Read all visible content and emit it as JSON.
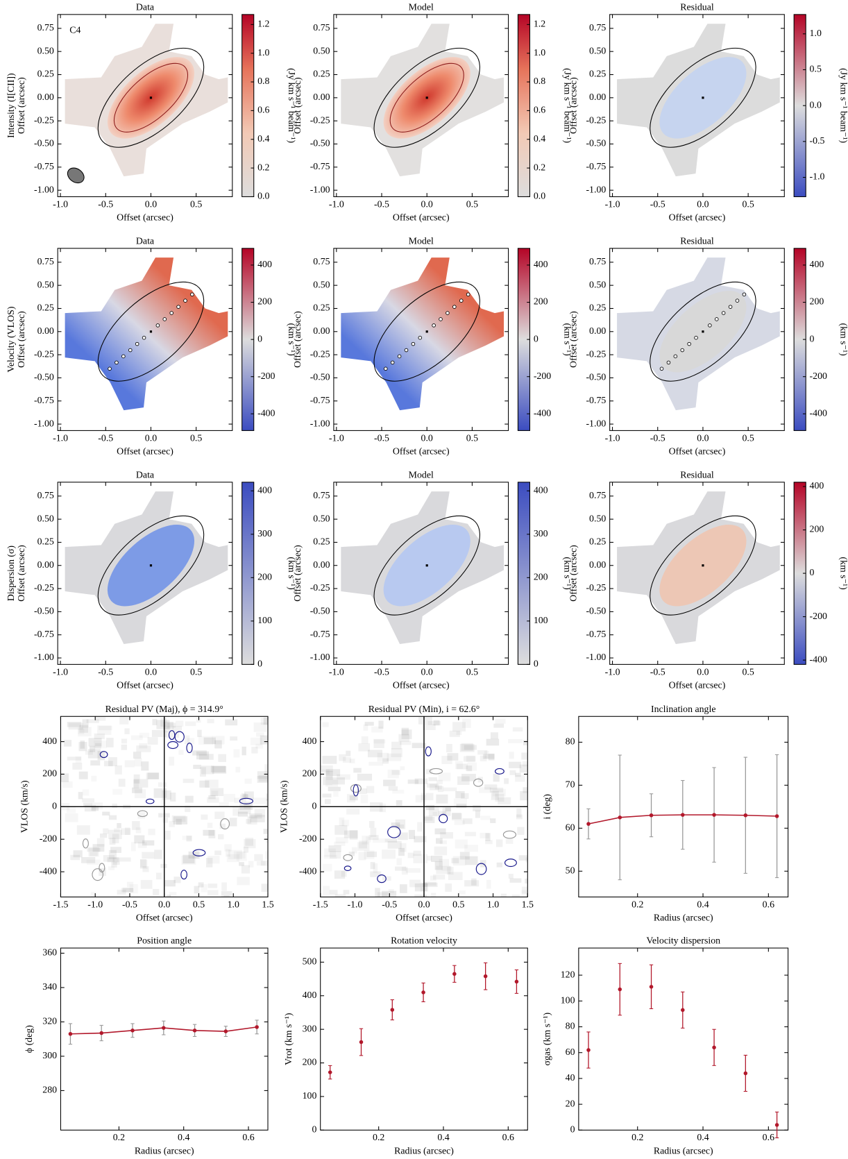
{
  "chart_data": [
    {
      "type": "map",
      "title": "Data",
      "annotation": "C4",
      "row_label": "Intensity (I[CII])",
      "ylabel": "Offset (arcsec)",
      "xlabel": "Offset (arcsec)",
      "xlim": [
        -1.03,
        0.9
      ],
      "ylim": [
        -1.07,
        0.9
      ],
      "xticks": [
        {
          "value": -1,
          "label": "-1.0"
        },
        -0.5,
        {
          "value": 0,
          "label": "0.0"
        },
        0.5
      ],
      "yticks": [
        {
          "value": -1,
          "label": "-1.00"
        },
        -0.75,
        {
          "value": -0.5,
          "label": "-0.50"
        },
        -0.25,
        {
          "value": 0,
          "label": "0.00"
        },
        0.25,
        {
          "value": 0.5,
          "label": "0.50"
        },
        0.75
      ],
      "colorbar": {
        "label": "(Jy km s⁻¹ beam⁻¹)",
        "cmap": "reds",
        "lim": [
          0,
          1.27
        ],
        "ticks": [
          {
            "value": 0,
            "label": "0.0"
          },
          0.2,
          0.4,
          0.6,
          0.8,
          {
            "value": 1,
            "label": "1.0"
          },
          1.2
        ]
      }
    },
    {
      "type": "map",
      "title": "Model",
      "ylabel": "Offset (arcsec)",
      "xlabel": "Offset (arcsec)",
      "xlim": [
        -1.03,
        0.9
      ],
      "ylim": [
        -1.07,
        0.9
      ],
      "xticks": [
        {
          "value": -1,
          "label": "-1.0"
        },
        -0.5,
        {
          "value": 0,
          "label": "0.0"
        },
        0.5
      ],
      "yticks": [
        {
          "value": -1,
          "label": "-1.00"
        },
        -0.75,
        {
          "value": -0.5,
          "label": "-0.50"
        },
        -0.25,
        {
          "value": 0,
          "label": "0.00"
        },
        0.25,
        {
          "value": 0.5,
          "label": "0.50"
        },
        0.75
      ],
      "colorbar": {
        "label": "(Jy km s⁻¹ beam⁻¹)",
        "cmap": "reds",
        "lim": [
          0,
          1.27
        ],
        "ticks": [
          {
            "value": 0,
            "label": "0.0"
          },
          0.2,
          0.4,
          0.6,
          0.8,
          {
            "value": 1,
            "label": "1.0"
          },
          1.2
        ]
      }
    },
    {
      "type": "map",
      "title": "Residual",
      "ylabel": "Offset (arcsec)",
      "xlabel": "Offset (arcsec)",
      "xlim": [
        -1.03,
        0.9
      ],
      "ylim": [
        -1.07,
        0.9
      ],
      "xticks": [
        {
          "value": -1,
          "label": "-1.0"
        },
        -0.5,
        {
          "value": 0,
          "label": "0.0"
        },
        0.5
      ],
      "yticks": [
        {
          "value": -1,
          "label": "-1.00"
        },
        -0.75,
        {
          "value": -0.5,
          "label": "-0.50"
        },
        -0.25,
        {
          "value": 0,
          "label": "0.00"
        },
        0.25,
        {
          "value": 0.5,
          "label": "0.50"
        },
        0.75
      ],
      "colorbar": {
        "label": "(Jy km s⁻¹ beam⁻¹)",
        "cmap": "coolwarm",
        "lim": [
          -1.27,
          1.27
        ],
        "ticks": [
          {
            "value": -1,
            "label": "-1.0"
          },
          -0.5,
          {
            "value": 0,
            "label": "0.0"
          },
          0.5,
          {
            "value": 1,
            "label": "1.0"
          }
        ]
      }
    },
    {
      "type": "map",
      "title": "Data",
      "row_label": "Velocity (VLOS)",
      "ylabel": "Offset (arcsec)",
      "xlabel": "Offset (arcsec)",
      "xlim": [
        -1.03,
        0.9
      ],
      "ylim": [
        -1.07,
        0.9
      ],
      "xticks": [
        {
          "value": -1,
          "label": "-1.0"
        },
        -0.5,
        {
          "value": 0,
          "label": "0.0"
        },
        0.5
      ],
      "yticks": [
        {
          "value": -1,
          "label": "-1.00"
        },
        -0.75,
        {
          "value": -0.5,
          "label": "-0.50"
        },
        -0.25,
        {
          "value": 0,
          "label": "0.00"
        },
        0.25,
        {
          "value": 0.5,
          "label": "0.50"
        },
        0.75
      ],
      "colorbar": {
        "label": "(km s⁻¹)",
        "cmap": "coolwarm",
        "lim": [
          -490,
          490
        ],
        "ticks": [
          -400,
          -200,
          0,
          200,
          400
        ]
      }
    },
    {
      "type": "map",
      "title": "Model",
      "ylabel": "Offset (arcsec)",
      "xlabel": "Offset (arcsec)",
      "xlim": [
        -1.03,
        0.9
      ],
      "ylim": [
        -1.07,
        0.9
      ],
      "xticks": [
        {
          "value": -1,
          "label": "-1.0"
        },
        -0.5,
        {
          "value": 0,
          "label": "0.0"
        },
        0.5
      ],
      "yticks": [
        {
          "value": -1,
          "label": "-1.00"
        },
        -0.75,
        {
          "value": -0.5,
          "label": "-0.50"
        },
        -0.25,
        {
          "value": 0,
          "label": "0.00"
        },
        0.25,
        {
          "value": 0.5,
          "label": "0.50"
        },
        0.75
      ],
      "colorbar": {
        "label": "(km s⁻¹)",
        "cmap": "coolwarm",
        "lim": [
          -490,
          490
        ],
        "ticks": [
          -400,
          -200,
          0,
          200,
          400
        ]
      }
    },
    {
      "type": "map",
      "title": "Residual",
      "ylabel": "Offset (arcsec)",
      "xlabel": "Offset (arcsec)",
      "xlim": [
        -1.03,
        0.9
      ],
      "ylim": [
        -1.07,
        0.9
      ],
      "xticks": [
        {
          "value": -1,
          "label": "-1.0"
        },
        -0.5,
        {
          "value": 0,
          "label": "0.0"
        },
        0.5
      ],
      "yticks": [
        {
          "value": -1,
          "label": "-1.00"
        },
        -0.75,
        {
          "value": -0.5,
          "label": "-0.50"
        },
        -0.25,
        {
          "value": 0,
          "label": "0.00"
        },
        0.25,
        {
          "value": 0.5,
          "label": "0.50"
        },
        0.75
      ],
      "colorbar": {
        "label": "(km s⁻¹)",
        "cmap": "coolwarm",
        "lim": [
          -490,
          490
        ],
        "ticks": [
          -400,
          -200,
          0,
          200,
          400
        ]
      }
    },
    {
      "type": "map",
      "title": "Data",
      "row_label": "Dispersion (σ)",
      "ylabel": "Offset (arcsec)",
      "xlabel": "Offset (arcsec)",
      "xlim": [
        -1.03,
        0.9
      ],
      "ylim": [
        -1.07,
        0.9
      ],
      "xticks": [
        {
          "value": -1,
          "label": "-1.0"
        },
        -0.5,
        {
          "value": 0,
          "label": "0.0"
        },
        0.5
      ],
      "yticks": [
        {
          "value": -1,
          "label": "-1.00"
        },
        -0.75,
        {
          "value": -0.5,
          "label": "-0.50"
        },
        -0.25,
        {
          "value": 0,
          "label": "0.00"
        },
        0.25,
        {
          "value": 0.5,
          "label": "0.50"
        },
        0.75
      ],
      "colorbar": {
        "label": "(km s⁻¹)",
        "cmap": "blues",
        "lim": [
          0,
          420
        ],
        "ticks": [
          0,
          100,
          200,
          300,
          400
        ]
      }
    },
    {
      "type": "map",
      "title": "Model",
      "ylabel": "Offset (arcsec)",
      "xlabel": "Offset (arcsec)",
      "xlim": [
        -1.03,
        0.9
      ],
      "ylim": [
        -1.07,
        0.9
      ],
      "xticks": [
        {
          "value": -1,
          "label": "-1.0"
        },
        -0.5,
        {
          "value": 0,
          "label": "0.0"
        },
        0.5
      ],
      "yticks": [
        {
          "value": -1,
          "label": "-1.00"
        },
        -0.75,
        {
          "value": -0.5,
          "label": "-0.50"
        },
        -0.25,
        {
          "value": 0,
          "label": "0.00"
        },
        0.25,
        {
          "value": 0.5,
          "label": "0.50"
        },
        0.75
      ],
      "colorbar": {
        "label": "(km s⁻¹)",
        "cmap": "blues",
        "lim": [
          0,
          420
        ],
        "ticks": [
          0,
          100,
          200,
          300,
          400
        ]
      }
    },
    {
      "type": "map",
      "title": "Residual",
      "ylabel": "Offset (arcsec)",
      "xlabel": "Offset (arcsec)",
      "xlim": [
        -1.03,
        0.9
      ],
      "ylim": [
        -1.07,
        0.9
      ],
      "xticks": [
        {
          "value": -1,
          "label": "-1.0"
        },
        -0.5,
        {
          "value": 0,
          "label": "0.0"
        },
        0.5
      ],
      "yticks": [
        {
          "value": -1,
          "label": "-1.00"
        },
        -0.75,
        {
          "value": -0.5,
          "label": "-0.50"
        },
        -0.25,
        {
          "value": 0,
          "label": "0.00"
        },
        0.25,
        {
          "value": 0.5,
          "label": "0.50"
        },
        0.75
      ],
      "colorbar": {
        "label": "(km s⁻¹)",
        "cmap": "coolwarm",
        "lim": [
          -420,
          420
        ],
        "ticks": [
          -400,
          -200,
          0,
          200,
          400
        ]
      }
    },
    {
      "type": "pv",
      "title": "Residual PV (Maj), ϕ = 314.9°",
      "xlabel": "Offset (arcsec)",
      "ylabel": "VLOS (km/s)",
      "xlim": [
        -1.5,
        1.5
      ],
      "ylim": [
        -555,
        555
      ],
      "xticks": [
        -1.5,
        {
          "value": -1,
          "label": "-1.0"
        },
        -0.5,
        {
          "value": 0,
          "label": "0.0"
        },
        0.5,
        {
          "value": 1,
          "label": "1.0"
        },
        1.5
      ],
      "yticks": [
        -400,
        -200,
        0,
        200,
        400
      ]
    },
    {
      "type": "pv",
      "title": "Residual PV (Min), i = 62.6°",
      "xlabel": "Offset (arcsec)",
      "ylabel": "VLOS (km/s)",
      "xlim": [
        -1.5,
        1.5
      ],
      "ylim": [
        -555,
        555
      ],
      "xticks": [
        -1.5,
        {
          "value": -1,
          "label": "-1.0"
        },
        -0.5,
        {
          "value": 0,
          "label": "0.0"
        },
        0.5,
        {
          "value": 1,
          "label": "1.0"
        },
        1.5
      ],
      "yticks": [
        -400,
        -200,
        0,
        200,
        400
      ]
    },
    {
      "type": "profile",
      "title": "Inclination angle",
      "xlabel": "Radius (arcsec)",
      "ylabel": "i (deg)",
      "line": true,
      "color": "#b2182b",
      "error_color": "#999999",
      "x": [
        0.05,
        0.146,
        0.242,
        0.338,
        0.434,
        0.53,
        0.626
      ],
      "values": [
        61,
        62.5,
        63,
        63.1,
        63.1,
        63,
        62.8
      ],
      "errors": [
        3.5,
        14.5,
        5,
        8,
        11,
        13.5,
        14.3
      ],
      "xlim": [
        0.02,
        0.66
      ],
      "xticks": [
        0.2,
        0.4,
        0.6
      ],
      "ylim": [
        44,
        86
      ],
      "yticks": [
        50,
        60,
        70,
        80
      ]
    },
    {
      "type": "profile",
      "title": "Position angle",
      "xlabel": "Radius (arcsec)",
      "ylabel": "ϕ (deg)",
      "line": true,
      "color": "#b2182b",
      "error_color": "#999999",
      "x": [
        0.05,
        0.146,
        0.242,
        0.338,
        0.434,
        0.53,
        0.626
      ],
      "values": [
        313,
        313.5,
        315,
        316.5,
        315,
        314.5,
        317
      ],
      "errors": [
        6,
        4.5,
        4,
        4,
        3.5,
        3,
        4
      ],
      "xlim": [
        0.02,
        0.66
      ],
      "xticks": [
        0.2,
        0.4,
        0.6
      ],
      "ylim": [
        257,
        363
      ],
      "yticks": [
        280,
        300,
        320,
        340,
        360
      ]
    },
    {
      "type": "profile",
      "title": "Rotation velocity",
      "xlabel": "Radius (arcsec)",
      "ylabel": "Vrot (km s⁻¹)",
      "line": false,
      "color": "#b2182b",
      "error_color": "#b2182b",
      "x": [
        0.05,
        0.146,
        0.242,
        0.338,
        0.434,
        0.53,
        0.626
      ],
      "values": [
        172,
        262,
        358,
        410,
        465,
        458,
        442
      ],
      "errors": [
        20,
        40,
        30,
        28,
        25,
        40,
        35
      ],
      "xlim": [
        0.02,
        0.66
      ],
      "xticks": [
        0.2,
        0.4,
        0.6
      ],
      "ylim": [
        0,
        542
      ],
      "yticks": [
        0,
        100,
        200,
        300,
        400,
        500
      ]
    },
    {
      "type": "profile",
      "title": "Velocity dispersion",
      "xlabel": "Radius (arcsec)",
      "ylabel": "σgas (km s⁻¹)",
      "line": false,
      "color": "#b2182b",
      "error_color": "#b2182b",
      "x": [
        0.05,
        0.146,
        0.242,
        0.338,
        0.434,
        0.53,
        0.626
      ],
      "values": [
        62,
        109,
        111,
        93,
        64,
        44,
        4
      ],
      "errors": [
        14,
        20,
        17,
        14,
        14,
        14,
        10
      ],
      "xlim": [
        0.02,
        0.66
      ],
      "xticks": [
        0.2,
        0.4,
        0.6
      ],
      "ylim": [
        0,
        141
      ],
      "yticks": [
        0,
        20,
        40,
        60,
        80,
        100,
        120
      ]
    }
  ]
}
